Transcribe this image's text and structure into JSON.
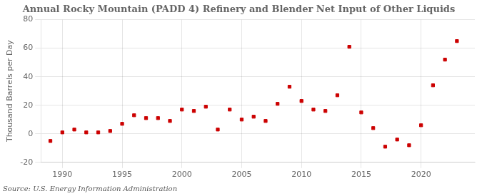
{
  "chart_data": {
    "type": "scatter",
    "title": "Annual Rocky Mountain (PADD 4) Refinery and Blender Net Input of Other Liquids",
    "ylabel": "Thousand Barrels per Day",
    "source": "Source: U.S. Energy Information Administration",
    "x": [
      1989,
      1990,
      1991,
      1992,
      1993,
      1994,
      1995,
      1996,
      1997,
      1998,
      1999,
      2000,
      2001,
      2002,
      2003,
      2004,
      2005,
      2006,
      2007,
      2008,
      2009,
      2010,
      2011,
      2012,
      2013,
      2014,
      2015,
      2016,
      2017,
      2018,
      2019,
      2020,
      2021,
      2022,
      2023
    ],
    "values": [
      -5,
      1,
      3,
      1,
      1,
      2,
      7,
      13,
      11,
      11,
      9,
      17,
      16,
      19,
      3,
      17,
      10,
      12,
      9,
      21,
      33,
      23,
      17,
      16,
      27,
      61,
      15,
      4,
      -9,
      -4,
      -8,
      6,
      34,
      52,
      65
    ],
    "color": "#cc0000",
    "marker": "square",
    "xlim": [
      1988.2,
      2024.5
    ],
    "xticks": [
      1990,
      1995,
      2000,
      2005,
      2010,
      2015,
      2020
    ],
    "ylim": [
      -20,
      80
    ],
    "yticks": [
      -20,
      0,
      20,
      40,
      60,
      80
    ],
    "grid": true
  }
}
